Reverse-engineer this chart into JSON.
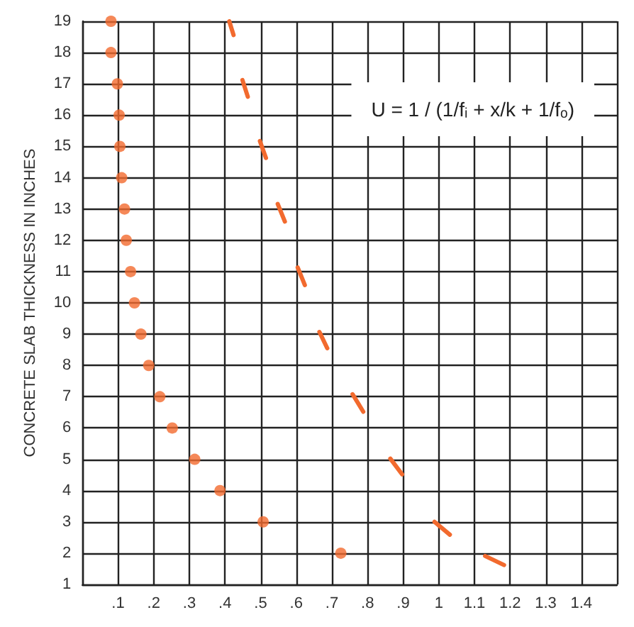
{
  "chart_data": {
    "type": "scatter",
    "ylabel": "CONCRETE SLAB THICKNESS IN INCHES",
    "xlim": [
      0,
      1.5
    ],
    "ylim": [
      1,
      19
    ],
    "xticks": [
      {
        "value": 0.1,
        "label": ".1"
      },
      {
        "value": 0.2,
        "label": ".2"
      },
      {
        "value": 0.3,
        "label": ".3"
      },
      {
        "value": 0.4,
        "label": ".4"
      },
      {
        "value": 0.5,
        "label": ".5"
      },
      {
        "value": 0.6,
        "label": ".6"
      },
      {
        "value": 0.7,
        "label": ".7"
      },
      {
        "value": 0.8,
        "label": ".8"
      },
      {
        "value": 0.9,
        "label": ".9"
      },
      1.0,
      1.1,
      1.2,
      1.3,
      1.4
    ],
    "yticks": [
      1,
      2,
      3,
      4,
      5,
      6,
      7,
      8,
      9,
      10,
      11,
      12,
      13,
      14,
      15,
      16,
      17,
      18,
      19
    ],
    "grid": true,
    "annotations": [
      "U = 1 / (1/fᵢ + x/k + 1/fₒ)"
    ],
    "series": [
      {
        "color": "#f26a2e",
        "marker": "circle",
        "x": [
          0.08,
          0.08,
          0.098,
          0.103,
          0.105,
          0.11,
          0.118,
          0.123,
          0.135,
          0.146,
          0.164,
          0.186,
          0.217,
          0.252,
          0.315,
          0.386,
          0.507,
          0.725
        ],
        "values": [
          19,
          18,
          17,
          16,
          15,
          14,
          13,
          12,
          11,
          10,
          9,
          8,
          7,
          6,
          5,
          4,
          3,
          2
        ]
      },
      {
        "type": "line",
        "color": "#f26a2e",
        "marker": "none",
        "line_style": "solid",
        "x": [
          0.412,
          0.424,
          null,
          0.449,
          0.464,
          null,
          0.498,
          0.515,
          null,
          0.548,
          0.568,
          null,
          0.604,
          0.624,
          null,
          0.665,
          0.687,
          null,
          0.758,
          0.788,
          null,
          0.864,
          0.897,
          null,
          0.988,
          1.031,
          null,
          1.13,
          1.183
        ],
        "values": [
          19,
          18.56,
          null,
          17.12,
          16.59,
          null,
          15.17,
          14.63,
          null,
          13.16,
          12.6,
          null,
          11.13,
          10.57,
          null,
          9.07,
          8.55,
          null,
          7.08,
          6.52,
          null,
          5.02,
          4.52,
          null,
          3.0,
          2.59,
          null,
          1.91,
          1.62
        ]
      }
    ]
  }
}
